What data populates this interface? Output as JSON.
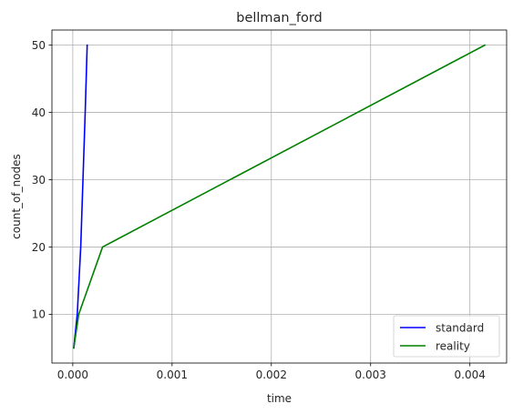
{
  "chart_data": {
    "type": "line",
    "title": "bellman_ford",
    "xlabel": "time",
    "ylabel": "count_of_nodes",
    "xlim": [
      -0.00021,
      0.00437
    ],
    "ylim": [
      2.75,
      52.25
    ],
    "xticks": [
      0.0,
      0.001,
      0.002,
      0.003,
      0.004
    ],
    "xtick_labels": [
      "0.000",
      "0.001",
      "0.002",
      "0.003",
      "0.004"
    ],
    "yticks": [
      10,
      20,
      30,
      40,
      50
    ],
    "ytick_labels": [
      "10",
      "20",
      "30",
      "40",
      "50"
    ],
    "grid": true,
    "legend_position": "lower-right",
    "series": [
      {
        "name": "standard",
        "color": "#0000ff",
        "x": [
          1e-05,
          4.5e-05,
          8e-05,
          0.000125,
          0.000145
        ],
        "y": [
          5,
          10,
          20,
          40,
          50
        ]
      },
      {
        "name": "reality",
        "color": "#008000",
        "x": [
          1e-05,
          6e-05,
          0.0003,
          0.00415
        ],
        "y": [
          5,
          10,
          20,
          50
        ]
      }
    ]
  }
}
